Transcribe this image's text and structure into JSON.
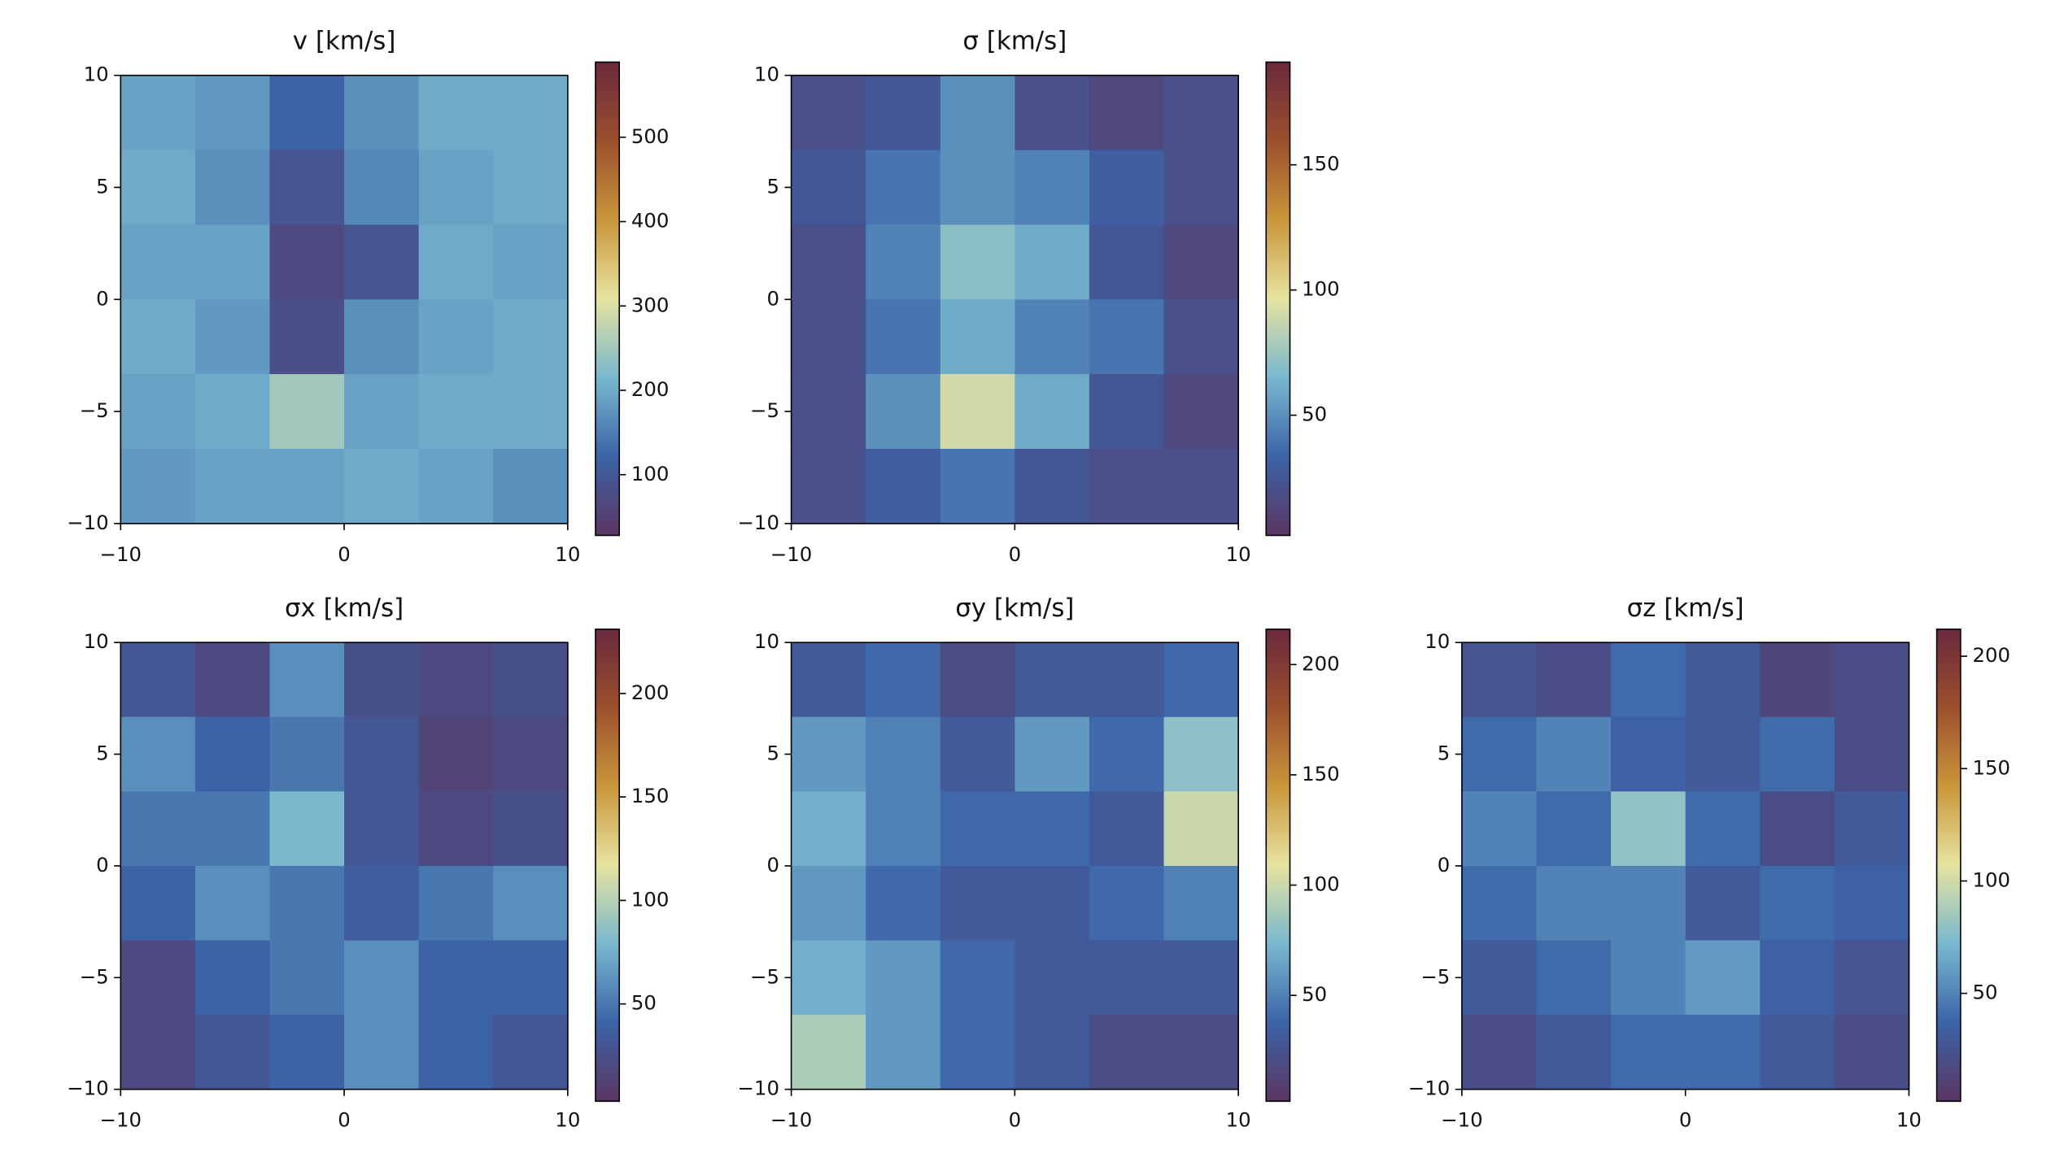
{
  "chart_data": [
    {
      "type": "heatmap",
      "title": "v [km/s]",
      "xlim": [
        -10,
        10
      ],
      "ylim": [
        -10,
        10
      ],
      "xticks": [
        {
          "value": -10,
          "label": "−10"
        },
        0,
        10
      ],
      "yticks": [
        {
          "value": -10,
          "label": "−10"
        },
        {
          "value": -5,
          "label": "−5"
        },
        0,
        5,
        10
      ],
      "zlim": [
        28,
        589
      ],
      "zticks": [
        100,
        200,
        300,
        400,
        500
      ],
      "colormap": [
        "#5b3561",
        "#3b64a8",
        "#78b8cf",
        "#e7e39f",
        "#c9963a",
        "#9c4f2c",
        "#6a2a3c"
      ],
      "z": [
        [
          190,
          180,
          120,
          170,
          200,
          200
        ],
        [
          200,
          170,
          90,
          160,
          190,
          200
        ],
        [
          190,
          190,
          70,
          90,
          200,
          190
        ],
        [
          200,
          180,
          80,
          170,
          190,
          200
        ],
        [
          190,
          200,
          250,
          190,
          200,
          200
        ],
        [
          180,
          190,
          190,
          200,
          190,
          170
        ]
      ]
    },
    {
      "type": "heatmap",
      "title": "σ [km/s]",
      "xlim": [
        -10,
        10
      ],
      "ylim": [
        -10,
        10
      ],
      "xticks": [
        {
          "value": -10,
          "label": "−10"
        },
        0,
        10
      ],
      "yticks": [
        {
          "value": -10,
          "label": "−10"
        },
        {
          "value": -5,
          "label": "−5"
        },
        0,
        5,
        10
      ],
      "zlim": [
        2,
        191
      ],
      "zticks": [
        50,
        100,
        150
      ],
      "colormap": [
        "#5b3561",
        "#3b64a8",
        "#78b8cf",
        "#e7e39f",
        "#c9963a",
        "#9c4f2c",
        "#6a2a3c"
      ],
      "z": [
        [
          20,
          25,
          50,
          20,
          15,
          20
        ],
        [
          25,
          40,
          50,
          45,
          30,
          20
        ],
        [
          20,
          45,
          70,
          60,
          25,
          15
        ],
        [
          20,
          40,
          60,
          45,
          40,
          20
        ],
        [
          20,
          50,
          90,
          60,
          25,
          15
        ],
        [
          20,
          30,
          40,
          25,
          20,
          20
        ]
      ]
    },
    {
      "type": "heatmap",
      "title": "σx [km/s]",
      "xlim": [
        -10,
        10
      ],
      "ylim": [
        -10,
        10
      ],
      "xticks": [
        {
          "value": -10,
          "label": "−10"
        },
        0,
        10
      ],
      "yticks": [
        {
          "value": -10,
          "label": "−10"
        },
        {
          "value": -5,
          "label": "−5"
        },
        0,
        5,
        10
      ],
      "zlim": [
        3,
        231
      ],
      "zticks": [
        50,
        100,
        150,
        200
      ],
      "colormap": [
        "#5b3561",
        "#3b64a8",
        "#78b8cf",
        "#e7e39f",
        "#c9963a",
        "#9c4f2c",
        "#6a2a3c"
      ],
      "z": [
        [
          30,
          20,
          60,
          25,
          20,
          25
        ],
        [
          60,
          40,
          50,
          30,
          15,
          20
        ],
        [
          50,
          50,
          80,
          30,
          20,
          25
        ],
        [
          40,
          60,
          50,
          35,
          50,
          60
        ],
        [
          20,
          40,
          50,
          60,
          40,
          40
        ],
        [
          20,
          30,
          40,
          60,
          40,
          30
        ]
      ]
    },
    {
      "type": "heatmap",
      "title": "σy [km/s]",
      "xlim": [
        -10,
        10
      ],
      "ylim": [
        -10,
        10
      ],
      "xticks": [
        {
          "value": -10,
          "label": "−10"
        },
        0,
        10
      ],
      "yticks": [
        {
          "value": -10,
          "label": "−10"
        },
        {
          "value": -5,
          "label": "−5"
        },
        0,
        5,
        10
      ],
      "zlim": [
        2,
        216
      ],
      "zticks": [
        50,
        100,
        150,
        200
      ],
      "colormap": [
        "#5b3561",
        "#3b64a8",
        "#78b8cf",
        "#e7e39f",
        "#c9963a",
        "#9c4f2c",
        "#6a2a3c"
      ],
      "z": [
        [
          30,
          40,
          20,
          30,
          30,
          40
        ],
        [
          60,
          50,
          30,
          60,
          40,
          80
        ],
        [
          70,
          50,
          40,
          40,
          30,
          100
        ],
        [
          60,
          40,
          30,
          30,
          40,
          50
        ],
        [
          70,
          60,
          40,
          30,
          30,
          30
        ],
        [
          90,
          60,
          40,
          30,
          20,
          20
        ]
      ]
    },
    {
      "type": "heatmap",
      "title": "σz [km/s]",
      "xlim": [
        -10,
        10
      ],
      "ylim": [
        -10,
        10
      ],
      "xticks": [
        {
          "value": -10,
          "label": "−10"
        },
        0,
        10
      ],
      "yticks": [
        {
          "value": -10,
          "label": "−10"
        },
        {
          "value": -5,
          "label": "−5"
        },
        0,
        5,
        10
      ],
      "zlim": [
        2,
        212
      ],
      "zticks": [
        50,
        100,
        150,
        200
      ],
      "colormap": [
        "#5b3561",
        "#3b64a8",
        "#78b8cf",
        "#e7e39f",
        "#c9963a",
        "#9c4f2c",
        "#6a2a3c"
      ],
      "z": [
        [
          25,
          20,
          40,
          30,
          15,
          20
        ],
        [
          40,
          50,
          35,
          30,
          40,
          20
        ],
        [
          50,
          40,
          80,
          40,
          20,
          30
        ],
        [
          40,
          50,
          50,
          30,
          40,
          35
        ],
        [
          30,
          40,
          50,
          60,
          35,
          25
        ],
        [
          20,
          30,
          40,
          40,
          30,
          20
        ]
      ]
    }
  ]
}
